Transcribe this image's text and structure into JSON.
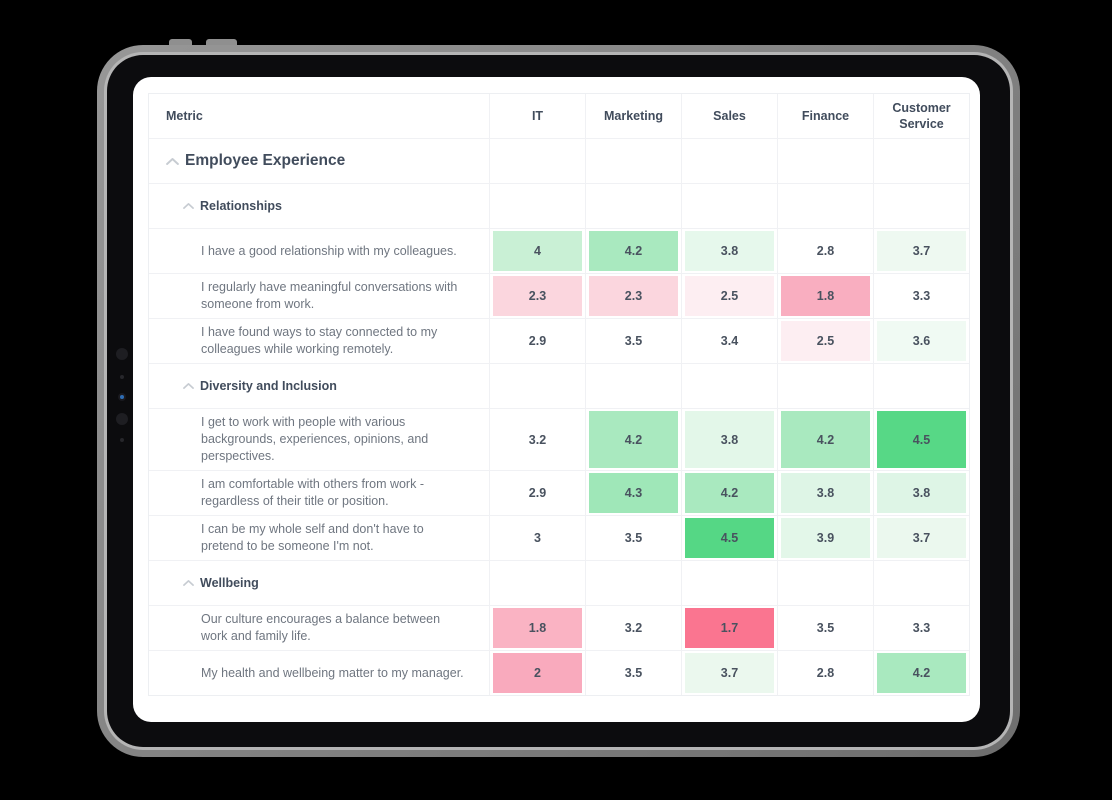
{
  "table": {
    "metric_header": "Metric"
  },
  "chart_data": {
    "type": "heatmap",
    "columns": [
      "IT",
      "Marketing",
      "Sales",
      "Finance",
      "Customer Service"
    ],
    "color_scale": {
      "low": "#fa7590",
      "mid": "#ffffff",
      "high": "#57d886"
    },
    "groups": [
      {
        "label": "Employee Experience",
        "subgroups": [
          {
            "label": "Relationships",
            "rows": [
              {
                "metric": "I have a good relationship with my colleagues.",
                "values": [
                  4,
                  4.2,
                  3.8,
                  2.8,
                  3.7
                ],
                "cell_colors": [
                  "#c9f0d5",
                  "#a9e9bf",
                  "#e6f8ec",
                  "#ffffff",
                  "#eef9f1"
                ]
              },
              {
                "metric": "I regularly have meaningful conversations with someone from work.",
                "values": [
                  2.3,
                  2.3,
                  2.5,
                  1.8,
                  3.3
                ],
                "cell_colors": [
                  "#fbd6de",
                  "#fbd6de",
                  "#fdeef2",
                  "#f9aec0",
                  "#ffffff"
                ]
              },
              {
                "metric": "I have found ways to stay connected to my colleagues while working remotely.",
                "values": [
                  2.9,
                  3.5,
                  3.4,
                  2.5,
                  3.6
                ],
                "cell_colors": [
                  "#ffffff",
                  "#ffffff",
                  "#ffffff",
                  "#fdeef2",
                  "#f0faf3"
                ]
              }
            ]
          },
          {
            "label": "Diversity and Inclusion",
            "rows": [
              {
                "metric": "I get to work with people with various backgrounds, experiences, opinions, and perspectives.",
                "values": [
                  3.2,
                  4.2,
                  3.8,
                  4.2,
                  4.5
                ],
                "cell_colors": [
                  "#ffffff",
                  "#a9e9bf",
                  "#e3f7e9",
                  "#a9e9bf",
                  "#57d886"
                ]
              },
              {
                "metric": "I am comfortable with others from work - regardless of their title or position.",
                "values": [
                  2.9,
                  4.3,
                  4.2,
                  3.8,
                  3.8
                ],
                "cell_colors": [
                  "#ffffff",
                  "#9fe7b8",
                  "#a9e9bf",
                  "#def5e6",
                  "#def5e6"
                ]
              },
              {
                "metric": "I can be my whole self and don't have to pretend to be someone I'm not.",
                "values": [
                  3,
                  3.5,
                  4.5,
                  3.9,
                  3.7
                ],
                "cell_colors": [
                  "#ffffff",
                  "#ffffff",
                  "#55d785",
                  "#e3f7e9",
                  "#ebf8ee"
                ]
              }
            ]
          },
          {
            "label": "Wellbeing",
            "rows": [
              {
                "metric": "Our culture encourages a balance between work and family life.",
                "values": [
                  1.8,
                  3.2,
                  1.7,
                  3.5,
                  3.3
                ],
                "cell_colors": [
                  "#fab3c3",
                  "#ffffff",
                  "#fa7590",
                  "#ffffff",
                  "#ffffff"
                ]
              },
              {
                "metric": "My health and wellbeing matter to my manager.",
                "values": [
                  2,
                  3.5,
                  3.7,
                  2.8,
                  4.2
                ],
                "cell_colors": [
                  "#f9aabd",
                  "#ffffff",
                  "#ebf8ee",
                  "#ffffff",
                  "#a9e9bf"
                ]
              }
            ]
          }
        ]
      }
    ]
  }
}
